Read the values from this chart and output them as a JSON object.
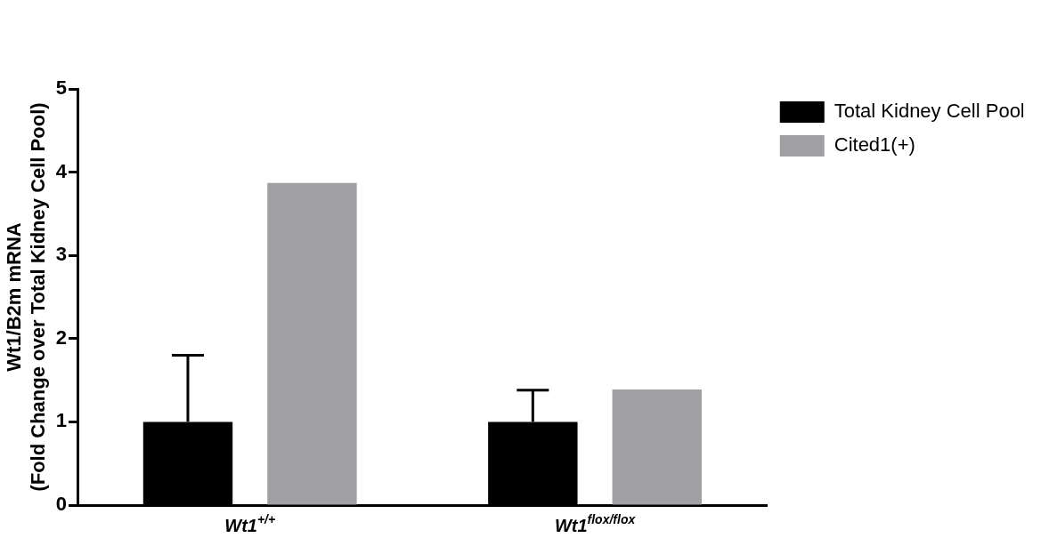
{
  "chart_data": {
    "type": "bar",
    "ylabel": "Wt1/B2m mRNA\n(Fold Change over Total Kidney Cell Pool)",
    "categories": [
      "Wt1$^{+/+}$",
      "Wt1$^{flox/flox}$"
    ],
    "series": [
      {
        "name": "Total Kidney Cell Pool",
        "color": "#000000",
        "values": [
          1.0,
          1.0
        ],
        "errors": [
          [
            1.0,
            1.8
          ],
          [
            1.0,
            1.38
          ]
        ]
      },
      {
        "name": "Cited1(+)",
        "color": "#a0a0a4",
        "values": [
          3.87,
          1.39
        ]
      }
    ],
    "ylim": [
      0,
      5
    ],
    "yticks": [
      0,
      1,
      2,
      3,
      4,
      5
    ],
    "grid": false,
    "legend": "top right"
  }
}
